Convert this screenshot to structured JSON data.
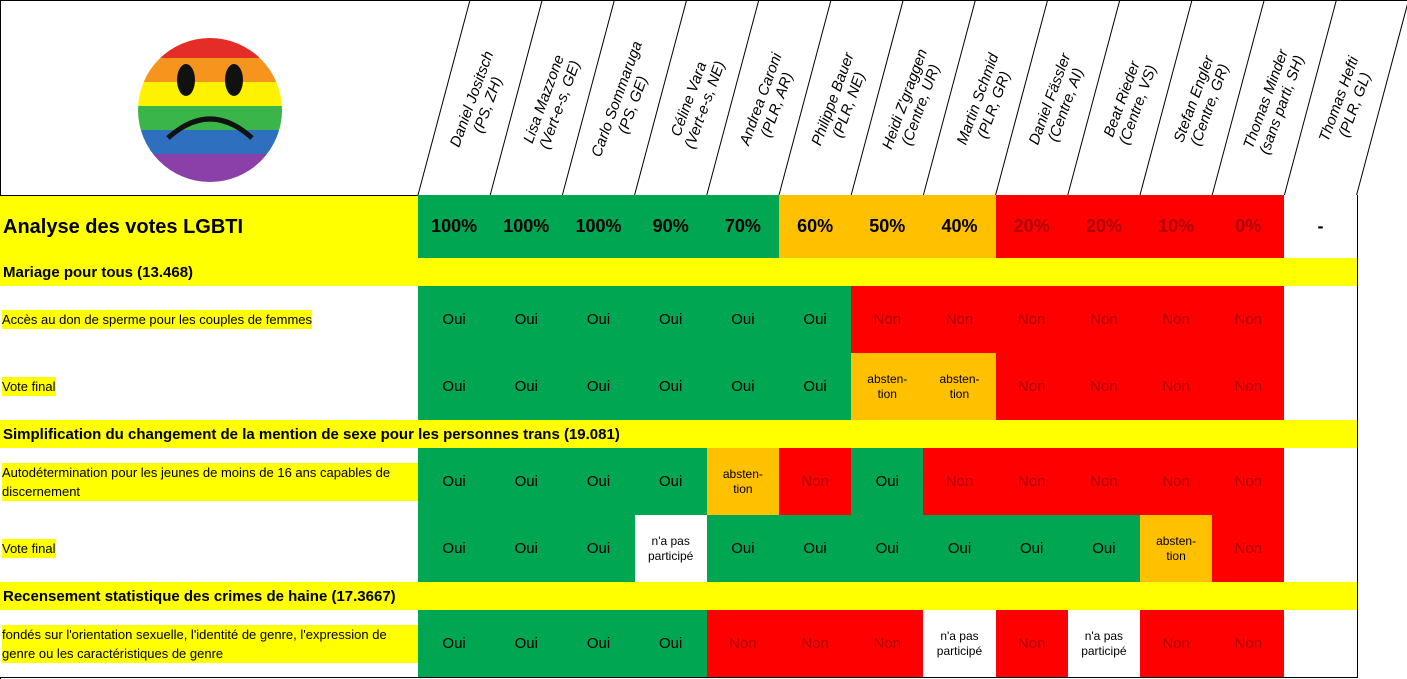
{
  "header": {
    "columns": [
      {
        "name": "Daniel Jositsch",
        "party": "(PS, ZH)"
      },
      {
        "name": "Lisa Mazzone",
        "party": "(Vert-e-s, GE)"
      },
      {
        "name": "Carlo Sommaruga",
        "party": "(PS, GE)"
      },
      {
        "name": "Céline Vara",
        "party": "(Vert-e-s, NE)"
      },
      {
        "name": "Andrea Caroni",
        "party": "(PLR, AR)"
      },
      {
        "name": "Philippe Bauer",
        "party": "(PLR, NE)"
      },
      {
        "name": "Heidi Z'graggen",
        "party": "(Centre, UR)"
      },
      {
        "name": "Martin Schmid",
        "party": "(PLR, GR)"
      },
      {
        "name": "Daniel Fässler",
        "party": "(Centre, AI)"
      },
      {
        "name": "Beat Rieder",
        "party": "(Centre, VS)"
      },
      {
        "name": "Stefan Engler",
        "party": "(Centre, GR)"
      },
      {
        "name": "Thomas Minder",
        "party": "(sans parti, SH)"
      },
      {
        "name": "Thomas Hefti",
        "party": "(PLR, GL)"
      }
    ]
  },
  "summary": {
    "title": "Analyse des votes LGBTI",
    "scores": [
      "100%",
      "100%",
      "100%",
      "90%",
      "70%",
      "60%",
      "50%",
      "40%",
      "20%",
      "20%",
      "10%",
      "0%",
      "-"
    ],
    "colors": [
      "#00a651",
      "#00a651",
      "#00a651",
      "#00a651",
      "#00a651",
      "#ffc000",
      "#ffc000",
      "#ffc000",
      "#ff0000",
      "#ff0000",
      "#ff0000",
      "#ff0000",
      "#ffffff"
    ]
  },
  "sections": [
    {
      "title": "Mariage pour tous (13.468)",
      "rows": [
        {
          "label": "Accès au don de sperme pour les couples de femmes",
          "votes": [
            "Oui",
            "Oui",
            "Oui",
            "Oui",
            "Oui",
            "Oui",
            "Non",
            "Non",
            "Non",
            "Non",
            "Non",
            "Non",
            null
          ],
          "colors": [
            "#00a651",
            "#00a651",
            "#00a651",
            "#00a651",
            "#00a651",
            "#00a651",
            "#ff0000",
            "#ff0000",
            "#ff0000",
            "#ff0000",
            "#ff0000",
            "#ff0000",
            "#ffffff"
          ]
        },
        {
          "label": "Vote final",
          "votes": [
            "Oui",
            "Oui",
            "Oui",
            "Oui",
            "Oui",
            "Oui",
            "absten-\ntion",
            "absten-\ntion",
            "Non",
            "Non",
            "Non",
            "Non",
            null
          ],
          "colors": [
            "#00a651",
            "#00a651",
            "#00a651",
            "#00a651",
            "#00a651",
            "#00a651",
            "#ffc000",
            "#ffc000",
            "#ff0000",
            "#ff0000",
            "#ff0000",
            "#ff0000",
            "#ffffff"
          ]
        }
      ]
    },
    {
      "title": "Simplification du changement de la mention de sexe pour les personnes trans (19.081)",
      "rows": [
        {
          "label": "Autodétermination pour les jeunes de moins de 16 ans capables de discernement",
          "votes": [
            "Oui",
            "Oui",
            "Oui",
            "Oui",
            "absten-\ntion",
            "Non",
            "Oui",
            "Non",
            "Non",
            "Non",
            "Non",
            "Non",
            null
          ],
          "colors": [
            "#00a651",
            "#00a651",
            "#00a651",
            "#00a651",
            "#ffc000",
            "#ff0000",
            "#00a651",
            "#ff0000",
            "#ff0000",
            "#ff0000",
            "#ff0000",
            "#ff0000",
            "#ffffff"
          ]
        },
        {
          "label": "Vote final",
          "votes": [
            "Oui",
            "Oui",
            "Oui",
            "n'a pas\nparticipé",
            "Oui",
            "Oui",
            "Oui",
            "Oui",
            "Oui",
            "Oui",
            "absten-\ntion",
            "Non",
            null
          ],
          "colors": [
            "#00a651",
            "#00a651",
            "#00a651",
            "#ffffff",
            "#00a651",
            "#00a651",
            "#00a651",
            "#00a651",
            "#00a651",
            "#00a651",
            "#ffc000",
            "#ff0000",
            "#ffffff"
          ]
        }
      ]
    },
    {
      "title": "Recensement statistique des crimes de haine (17.3667)",
      "rows": [
        {
          "label": "fondés sur l'orientation sexuelle, l'identité de genre, l'expression de genre ou les caractéristiques de genre",
          "votes": [
            "Oui",
            "Oui",
            "Oui",
            "Oui",
            "Non",
            "Non",
            "Non",
            "n'a pas\nparticipé",
            "Non",
            "n'a pas\nparticipé",
            "Non",
            "Non",
            null
          ],
          "colors": [
            "#00a651",
            "#00a651",
            "#00a651",
            "#00a651",
            "#ff0000",
            "#ff0000",
            "#ff0000",
            "#ffffff",
            "#ff0000",
            "#ffffff",
            "#ff0000",
            "#ff0000",
            "#ffffff"
          ]
        }
      ]
    }
  ]
}
